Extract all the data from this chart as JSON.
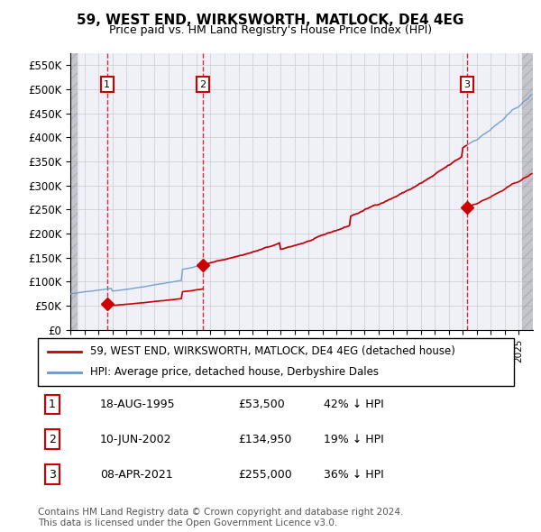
{
  "title_line1": "59, WEST END, WIRKSWORTH, MATLOCK, DE4 4EG",
  "title_line2": "Price paid vs. HM Land Registry's House Price Index (HPI)",
  "ylabel": "",
  "ylim": [
    0,
    575000
  ],
  "yticks": [
    0,
    50000,
    100000,
    150000,
    200000,
    250000,
    300000,
    350000,
    400000,
    450000,
    500000,
    550000
  ],
  "ytick_labels": [
    "£0",
    "£50K",
    "£100K",
    "£150K",
    "£200K",
    "£250K",
    "£300K",
    "£350K",
    "£400K",
    "£450K",
    "£500K",
    "£550K"
  ],
  "sale_dates": [
    "1995-08-18",
    "2002-06-10",
    "2021-04-08"
  ],
  "sale_prices": [
    53500,
    134950,
    255000
  ],
  "sale_color": "#cc0000",
  "hpi_color": "#6699cc",
  "marker_color": "#cc0000",
  "dashed_line_color": "#cc0000",
  "number_box_color": "#cc0000",
  "background_hatch_color": "#e8e8f0",
  "legend_label_red": "59, WEST END, WIRKSWORTH, MATLOCK, DE4 4EG (detached house)",
  "legend_label_blue": "HPI: Average price, detached house, Derbyshire Dales",
  "transactions": [
    {
      "num": 1,
      "date": "18-AUG-1995",
      "price": "£53,500",
      "change": "42% ↓ HPI"
    },
    {
      "num": 2,
      "date": "10-JUN-2002",
      "price": "£134,950",
      "change": "19% ↓ HPI"
    },
    {
      "num": 3,
      "date": "08-APR-2021",
      "price": "£255,000",
      "change": "36% ↓ HPI"
    }
  ],
  "footer": "Contains HM Land Registry data © Crown copyright and database right 2024.\nThis data is licensed under the Open Government Licence v3.0.",
  "xlim_start": 1993.0,
  "xlim_end": 2026.0
}
